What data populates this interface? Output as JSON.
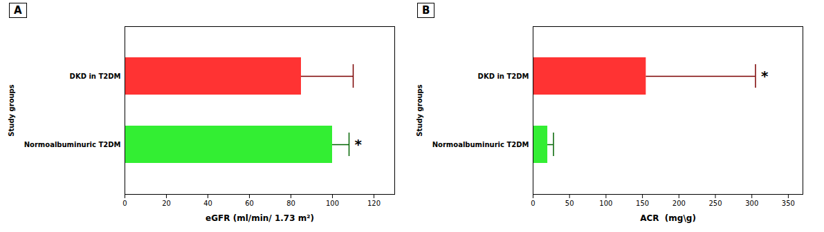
{
  "chart_data": [
    {
      "type": "bar",
      "orientation": "horizontal",
      "title": "A",
      "categories": [
        "DKD in T2DM",
        "Normoalbuminuric T2DM"
      ],
      "values": [
        85,
        100
      ],
      "errors_plus": [
        25,
        8
      ],
      "colors": [
        "#FF3333",
        "#33EE33"
      ],
      "error_colors": [
        "#7B0000",
        "#006400"
      ],
      "xlabel": "eGFR (ml/min/ 1.73 m²)",
      "ylabel": "Study groups",
      "xlim": [
        0,
        130
      ],
      "xticks": [
        0,
        20,
        40,
        60,
        80,
        100,
        120
      ],
      "annotations": [
        {
          "text": "*",
          "category": "Normoalbuminuric T2DM"
        }
      ],
      "grid": false
    },
    {
      "type": "bar",
      "orientation": "horizontal",
      "title": "B",
      "categories": [
        "DKD in T2DM",
        "Normoalbuminuric T2DM"
      ],
      "values": [
        155,
        20
      ],
      "errors_plus": [
        150,
        8
      ],
      "colors": [
        "#FF3333",
        "#33EE33"
      ],
      "error_colors": [
        "#7B0000",
        "#006400"
      ],
      "xlabel": "ACR  (mg\\g)",
      "ylabel": "Study groups",
      "xlim": [
        0,
        370
      ],
      "xticks": [
        0,
        50,
        100,
        150,
        200,
        250,
        300,
        350
      ],
      "annotations": [
        {
          "text": "*",
          "category": "DKD in T2DM"
        }
      ],
      "grid": false
    }
  ]
}
